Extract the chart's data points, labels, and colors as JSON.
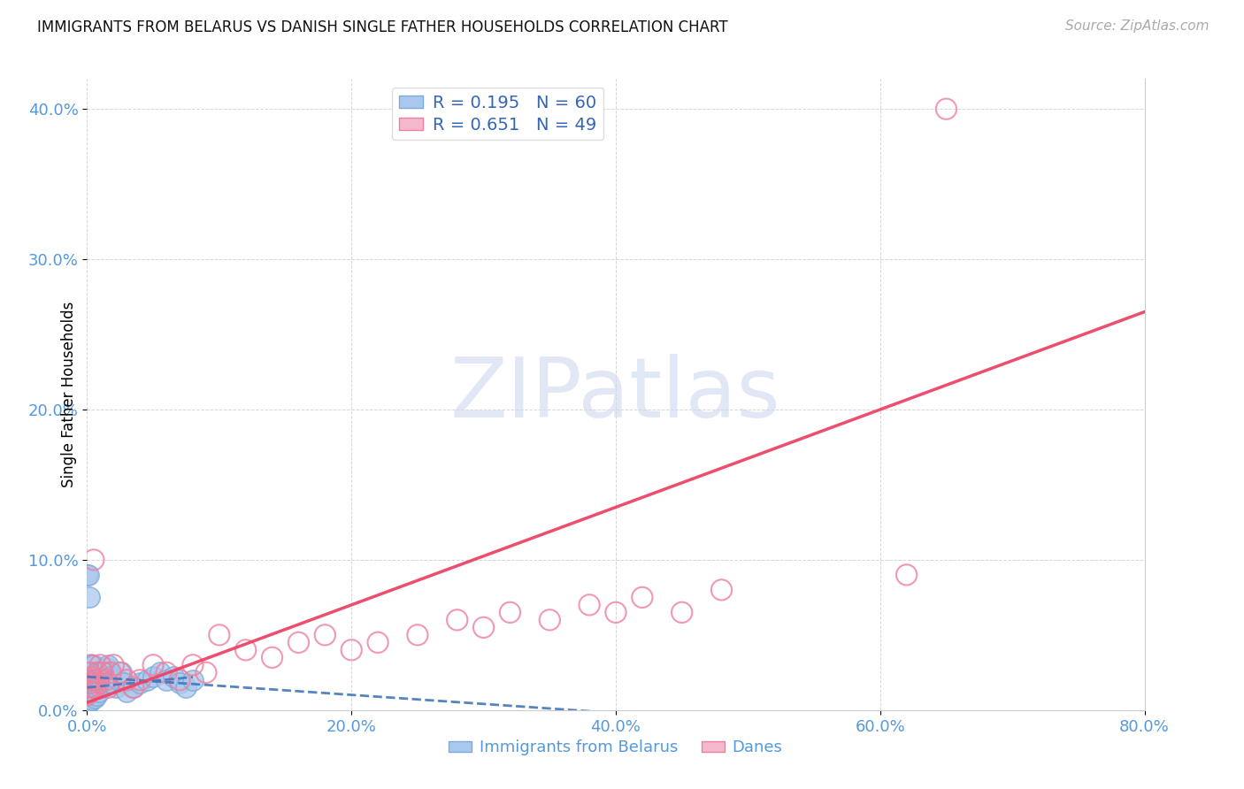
{
  "title": "IMMIGRANTS FROM BELARUS VS DANISH SINGLE FATHER HOUSEHOLDS CORRELATION CHART",
  "source": "Source: ZipAtlas.com",
  "ylabel_label": "Single Father Households",
  "legend_label1": "Immigrants from Belarus",
  "legend_label2": "Danes",
  "R1": "0.195",
  "N1": "60",
  "R2": "0.651",
  "N2": "49",
  "blue_fill_color": "#aac8ee",
  "pink_fill_color": "#f4b8cc",
  "blue_edge_color": "#7aaad8",
  "pink_edge_color": "#ee80a0",
  "blue_line_color": "#4477bb",
  "pink_line_color": "#ee4466",
  "text_color_blue": "#5599dd",
  "legend_text_color": "#3366bb",
  "watermark_color": "#cdd8ee",
  "grid_color": "#cccccc",
  "xlim": [
    0.0,
    0.8
  ],
  "ylim": [
    0.0,
    0.42
  ],
  "xticks": [
    0.0,
    0.2,
    0.4,
    0.6,
    0.8
  ],
  "yticks": [
    0.0,
    0.1,
    0.2,
    0.3,
    0.4
  ],
  "blue_x": [
    0.0,
    0.001,
    0.001,
    0.001,
    0.001,
    0.001,
    0.002,
    0.002,
    0.002,
    0.002,
    0.002,
    0.003,
    0.003,
    0.003,
    0.003,
    0.003,
    0.004,
    0.004,
    0.004,
    0.005,
    0.005,
    0.005,
    0.006,
    0.006,
    0.007,
    0.007,
    0.008,
    0.008,
    0.009,
    0.009,
    0.01,
    0.01,
    0.011,
    0.012,
    0.013,
    0.014,
    0.015,
    0.016,
    0.017,
    0.018,
    0.019,
    0.02,
    0.022,
    0.024,
    0.026,
    0.028,
    0.03,
    0.035,
    0.04,
    0.045,
    0.05,
    0.055,
    0.06,
    0.065,
    0.07,
    0.075,
    0.08,
    0.0,
    0.001,
    0.002
  ],
  "blue_y": [
    0.01,
    0.008,
    0.012,
    0.015,
    0.005,
    0.02,
    0.008,
    0.012,
    0.018,
    0.025,
    0.005,
    0.01,
    0.015,
    0.022,
    0.007,
    0.03,
    0.01,
    0.018,
    0.025,
    0.012,
    0.02,
    0.03,
    0.008,
    0.015,
    0.01,
    0.02,
    0.015,
    0.025,
    0.012,
    0.022,
    0.015,
    0.025,
    0.018,
    0.02,
    0.022,
    0.025,
    0.028,
    0.03,
    0.025,
    0.022,
    0.02,
    0.018,
    0.015,
    0.02,
    0.025,
    0.018,
    0.012,
    0.015,
    0.018,
    0.02,
    0.022,
    0.025,
    0.02,
    0.022,
    0.018,
    0.015,
    0.02,
    0.09,
    0.09,
    0.075
  ],
  "pink_x": [
    0.0,
    0.001,
    0.001,
    0.002,
    0.002,
    0.003,
    0.003,
    0.004,
    0.004,
    0.005,
    0.005,
    0.006,
    0.007,
    0.008,
    0.009,
    0.01,
    0.012,
    0.014,
    0.016,
    0.018,
    0.02,
    0.025,
    0.03,
    0.035,
    0.04,
    0.05,
    0.06,
    0.07,
    0.08,
    0.09,
    0.1,
    0.12,
    0.14,
    0.16,
    0.18,
    0.2,
    0.22,
    0.25,
    0.28,
    0.3,
    0.32,
    0.35,
    0.38,
    0.4,
    0.42,
    0.45,
    0.48,
    0.62,
    0.65
  ],
  "pink_y": [
    0.01,
    0.015,
    0.02,
    0.012,
    0.025,
    0.018,
    0.03,
    0.015,
    0.022,
    0.02,
    0.1,
    0.015,
    0.02,
    0.025,
    0.018,
    0.03,
    0.025,
    0.02,
    0.015,
    0.025,
    0.03,
    0.025,
    0.02,
    0.015,
    0.02,
    0.03,
    0.025,
    0.02,
    0.03,
    0.025,
    0.05,
    0.04,
    0.035,
    0.045,
    0.05,
    0.04,
    0.045,
    0.05,
    0.06,
    0.055,
    0.065,
    0.06,
    0.07,
    0.065,
    0.075,
    0.065,
    0.08,
    0.09,
    0.4
  ],
  "blue_trend_x": [
    0.0,
    0.08
  ],
  "blue_trend_y": [
    0.015,
    0.022
  ],
  "pink_trend_x": [
    0.0,
    0.8
  ],
  "pink_trend_y": [
    0.005,
    0.265
  ]
}
